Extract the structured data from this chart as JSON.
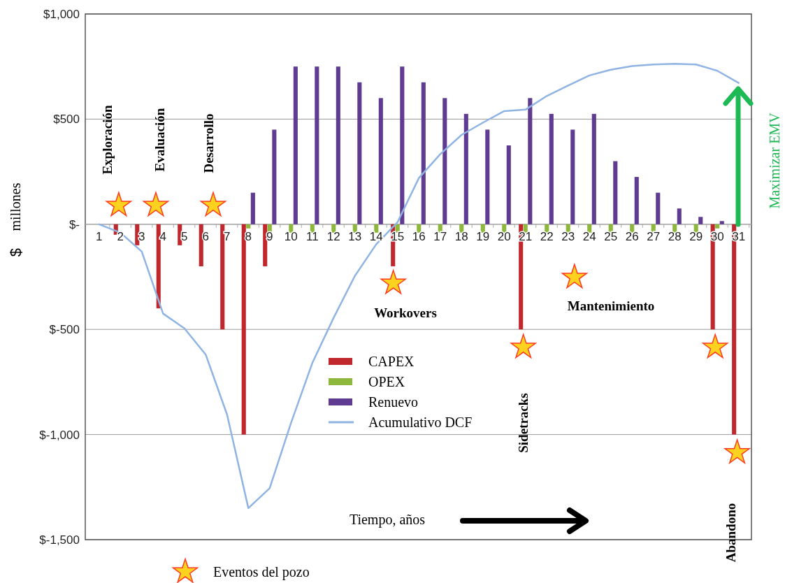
{
  "chart_data": {
    "type": "bar",
    "xlabel": "Tiempo, años",
    "ylabel": "$ millones",
    "x": [
      1,
      2,
      3,
      4,
      5,
      6,
      7,
      8,
      9,
      10,
      11,
      12,
      13,
      14,
      15,
      16,
      17,
      18,
      19,
      20,
      21,
      22,
      23,
      24,
      25,
      26,
      27,
      28,
      29,
      30,
      31
    ],
    "series": [
      {
        "name": "CAPEX",
        "color": "#c0282d",
        "values": [
          0,
          -50,
          -100,
          -400,
          -100,
          -200,
          -500,
          -1000,
          -200,
          0,
          0,
          0,
          0,
          0,
          -200,
          0,
          0,
          0,
          0,
          0,
          -500,
          0,
          0,
          0,
          0,
          0,
          0,
          0,
          0,
          -500,
          -1000
        ]
      },
      {
        "name": "OPEX",
        "color": "#8db83b",
        "values": [
          0,
          0,
          0,
          0,
          0,
          0,
          0,
          -20,
          -40,
          -40,
          -40,
          -40,
          -40,
          -40,
          -40,
          -40,
          -40,
          -40,
          -40,
          -40,
          -40,
          -40,
          -40,
          -40,
          -40,
          -40,
          -40,
          -40,
          -40,
          -20,
          0
        ]
      },
      {
        "name": "Renuevo",
        "color": "#5f3b92",
        "values": [
          0,
          0,
          0,
          0,
          0,
          0,
          0,
          150,
          450,
          750,
          750,
          750,
          675,
          600,
          750,
          675,
          600,
          525,
          450,
          375,
          600,
          525,
          450,
          525,
          300,
          225,
          150,
          75,
          35,
          15,
          0
        ]
      },
      {
        "name": "Acumulativo DCF",
        "type": "line",
        "color": "#8fb4e3",
        "values": [
          0,
          -40,
          -130,
          -425,
          -495,
          -620,
          -905,
          -1350,
          -1255,
          -945,
          -660,
          -445,
          -245,
          -95,
          10,
          220,
          333,
          425,
          483,
          538,
          545,
          610,
          660,
          708,
          735,
          752,
          760,
          763,
          760,
          730,
          672
        ]
      },
      {
        "name": "Eventos del pozo",
        "type": "scatter",
        "marker": "star",
        "color": "#ffd21f",
        "x": [
          1.92,
          3.66,
          6.35,
          14.8,
          20.9,
          23.3,
          29.9,
          30.93
        ],
        "values": [
          90,
          90,
          90,
          -280,
          -585,
          -252,
          -585,
          -1086
        ]
      }
    ],
    "xlim": [
      0.35,
      31.6
    ],
    "xticks": [
      1,
      2,
      3,
      4,
      5,
      6,
      7,
      8,
      9,
      10,
      11,
      12,
      13,
      14,
      15,
      16,
      17,
      18,
      19,
      20,
      21,
      22,
      23,
      24,
      25,
      26,
      27,
      28,
      29,
      30,
      31
    ],
    "ylim": [
      -1500,
      1000
    ],
    "yticks": [
      {
        "value": 1000,
        "label": "$1,000"
      },
      {
        "value": 500,
        "label": "$500"
      },
      {
        "value": 0,
        "label": "$-"
      },
      {
        "value": -500,
        "label": "$-500"
      },
      {
        "value": -1000,
        "label": "$-1,000"
      },
      {
        "value": -1500,
        "label": "$-1,500"
      }
    ],
    "grid": "y",
    "legend": "center",
    "annotations": [
      "Exploración",
      "Evaluación",
      "Desarrollo",
      "Workovers",
      "Mantenimiento",
      "Sidetracks",
      "Abandono",
      "Maximizar EMV"
    ]
  }
}
